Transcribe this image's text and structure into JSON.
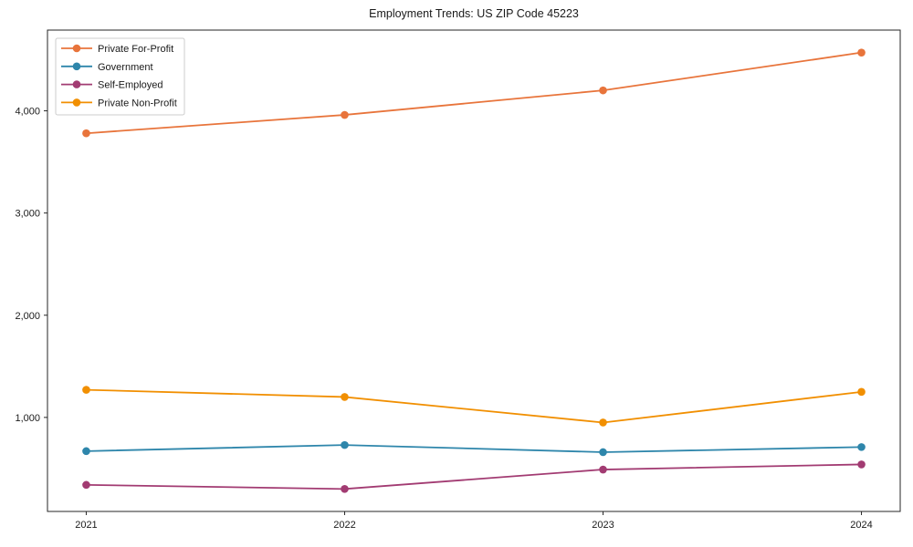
{
  "page": {
    "background": "#ffffff",
    "frame_color": "#262626",
    "tick_label_color": "#1a1a1a",
    "legend_border_color": "#cccccc",
    "legend_background": "#ffffff"
  },
  "chart_data": {
    "type": "line",
    "title": "Employment Trends: US ZIP Code 45223",
    "xlabel": "",
    "ylabel": "",
    "x": [
      2021,
      2022,
      2023,
      2024
    ],
    "x_tick_labels": [
      "2021",
      "2022",
      "2023",
      "2024"
    ],
    "y_ticks": [
      1000,
      2000,
      3000,
      4000
    ],
    "y_tick_labels": [
      "1,000",
      "2,000",
      "3,000",
      "4,000"
    ],
    "xlim": [
      2020.85,
      2024.15
    ],
    "ylim": [
      80,
      4790
    ],
    "grid": false,
    "legend_position": "upper-left",
    "marker": "circle",
    "series": [
      {
        "name": "Private For-Profit",
        "color": "#E8743B",
        "values": [
          3780,
          3960,
          4200,
          4570
        ]
      },
      {
        "name": "Government",
        "color": "#2E86AB",
        "values": [
          670,
          730,
          660,
          710
        ]
      },
      {
        "name": "Self-Employed",
        "color": "#A23B72",
        "values": [
          340,
          300,
          490,
          540
        ]
      },
      {
        "name": "Private Non-Profit",
        "color": "#F18F01",
        "values": [
          1270,
          1200,
          950,
          1250
        ]
      }
    ]
  }
}
